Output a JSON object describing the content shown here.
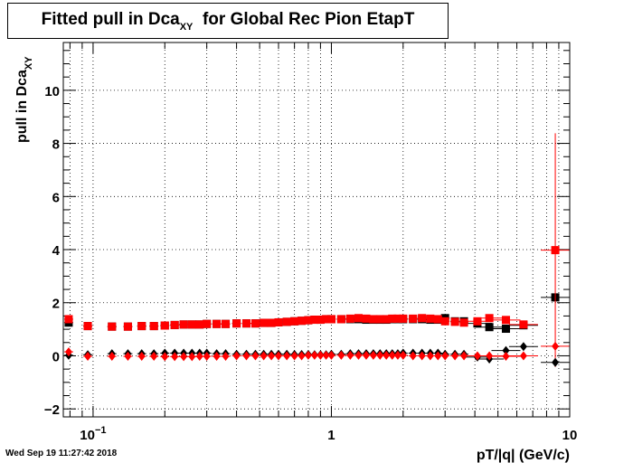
{
  "chart_data": {
    "type": "scatter",
    "title_main": "Fitted pull in Dca",
    "title_sub": "XY",
    "title_rest": "for Global Rec Pion EtapT",
    "xlabel": "pT/|q| (GeV/c)",
    "ylabel_main": "pull in Dca",
    "ylabel_sub": "XY",
    "x_scale": "log",
    "xlim": [
      0.075,
      10
    ],
    "ylim": [
      -2.3,
      11.8
    ],
    "grid": true,
    "x_tick_labels": [
      {
        "value": 0.1,
        "base": "10",
        "exp": "−1"
      },
      {
        "value": 1,
        "text": "1"
      },
      {
        "value": 10,
        "text": "10"
      }
    ],
    "y_ticks": [
      -2,
      0,
      2,
      4,
      6,
      8,
      10
    ],
    "y_tick_labels": [
      "−2",
      "0",
      "2",
      "4",
      "6",
      "8",
      "10"
    ],
    "colors": {
      "black": "#000000",
      "red": "#ff0000"
    },
    "series": [
      {
        "marker": "square",
        "color": "#000000",
        "x": [
          0.079,
          0.095,
          0.12,
          0.14,
          0.16,
          0.18,
          0.2,
          0.22,
          0.24,
          0.26,
          0.28,
          0.3,
          0.33,
          0.36,
          0.4,
          0.44,
          0.48,
          0.52,
          0.56,
          0.6,
          0.65,
          0.7,
          0.75,
          0.8,
          0.85,
          0.9,
          0.95,
          1.0,
          1.1,
          1.2,
          1.3,
          1.4,
          1.5,
          1.6,
          1.7,
          1.8,
          1.9,
          2.0,
          2.2,
          2.4,
          2.6,
          2.8,
          3.0,
          3.3,
          3.6,
          4.1,
          4.6,
          5.4,
          6.4,
          8.7
        ],
        "y": [
          1.25,
          1.12,
          1.1,
          1.1,
          1.12,
          1.12,
          1.14,
          1.16,
          1.18,
          1.18,
          1.18,
          1.2,
          1.2,
          1.2,
          1.22,
          1.22,
          1.22,
          1.24,
          1.24,
          1.26,
          1.28,
          1.3,
          1.32,
          1.34,
          1.36,
          1.36,
          1.38,
          1.38,
          1.38,
          1.38,
          1.38,
          1.36,
          1.36,
          1.36,
          1.36,
          1.38,
          1.38,
          1.38,
          1.38,
          1.38,
          1.36,
          1.36,
          1.42,
          1.3,
          1.3,
          1.22,
          1.08,
          1.02,
          1.15,
          2.2
        ]
      },
      {
        "marker": "square",
        "color": "#ff0000",
        "x": [
          0.079,
          0.095,
          0.12,
          0.14,
          0.16,
          0.18,
          0.2,
          0.22,
          0.24,
          0.26,
          0.28,
          0.3,
          0.33,
          0.36,
          0.4,
          0.44,
          0.48,
          0.52,
          0.56,
          0.6,
          0.65,
          0.7,
          0.75,
          0.8,
          0.85,
          0.9,
          0.95,
          1.0,
          1.1,
          1.2,
          1.3,
          1.4,
          1.5,
          1.6,
          1.7,
          1.8,
          1.9,
          2.0,
          2.2,
          2.4,
          2.6,
          2.8,
          3.0,
          3.3,
          3.6,
          4.1,
          4.6,
          5.4,
          6.4,
          8.7
        ],
        "y": [
          1.38,
          1.12,
          1.1,
          1.1,
          1.12,
          1.12,
          1.14,
          1.16,
          1.18,
          1.18,
          1.18,
          1.2,
          1.2,
          1.2,
          1.22,
          1.22,
          1.22,
          1.24,
          1.24,
          1.26,
          1.28,
          1.3,
          1.32,
          1.34,
          1.36,
          1.36,
          1.38,
          1.38,
          1.38,
          1.4,
          1.42,
          1.4,
          1.38,
          1.38,
          1.38,
          1.4,
          1.4,
          1.4,
          1.4,
          1.42,
          1.4,
          1.38,
          1.3,
          1.28,
          1.25,
          1.3,
          1.42,
          1.35,
          1.18,
          3.98
        ],
        "err": [
          0,
          0,
          0,
          0,
          0,
          0,
          0,
          0,
          0,
          0,
          0,
          0,
          0,
          0,
          0,
          0,
          0,
          0,
          0,
          0,
          0,
          0,
          0,
          0,
          0,
          0,
          0,
          0,
          0,
          0,
          0,
          0,
          0,
          0,
          0,
          0,
          0,
          0,
          0,
          0,
          0,
          0,
          0,
          0,
          0,
          0,
          0,
          0,
          0,
          4.4
        ]
      },
      {
        "marker": "diamond",
        "color": "#000000",
        "x": [
          0.079,
          0.095,
          0.12,
          0.14,
          0.16,
          0.18,
          0.2,
          0.22,
          0.24,
          0.26,
          0.28,
          0.3,
          0.33,
          0.36,
          0.4,
          0.44,
          0.48,
          0.52,
          0.56,
          0.6,
          0.65,
          0.7,
          0.75,
          0.8,
          0.85,
          0.9,
          0.95,
          1.0,
          1.1,
          1.2,
          1.3,
          1.4,
          1.5,
          1.6,
          1.7,
          1.8,
          1.9,
          2.0,
          2.2,
          2.4,
          2.6,
          2.8,
          3.0,
          3.3,
          3.6,
          4.1,
          4.6,
          5.4,
          6.4,
          8.7
        ],
        "y": [
          0.02,
          0.04,
          0.08,
          0.08,
          0.08,
          0.08,
          0.1,
          0.1,
          0.1,
          0.1,
          0.1,
          0.1,
          0.08,
          0.08,
          0.06,
          0.06,
          0.06,
          0.06,
          0.06,
          0.06,
          0.06,
          0.05,
          0.05,
          0.05,
          0.04,
          0.04,
          0.04,
          0.06,
          0.06,
          0.08,
          0.08,
          0.08,
          0.08,
          0.08,
          0.08,
          0.08,
          0.08,
          0.1,
          0.1,
          0.1,
          0.1,
          0.1,
          0.06,
          0.06,
          0.06,
          -0.05,
          -0.12,
          0.2,
          0.35,
          -0.25
        ]
      },
      {
        "marker": "diamond",
        "color": "#ff0000",
        "x": [
          0.079,
          0.095,
          0.12,
          0.14,
          0.16,
          0.18,
          0.2,
          0.22,
          0.24,
          0.26,
          0.28,
          0.3,
          0.33,
          0.36,
          0.4,
          0.44,
          0.48,
          0.52,
          0.56,
          0.6,
          0.65,
          0.7,
          0.75,
          0.8,
          0.85,
          0.9,
          0.95,
          1.0,
          1.1,
          1.2,
          1.3,
          1.4,
          1.5,
          1.6,
          1.7,
          1.8,
          1.9,
          2.0,
          2.2,
          2.4,
          2.6,
          2.8,
          3.0,
          3.3,
          3.6,
          4.1,
          4.6,
          5.4,
          6.4,
          8.7
        ],
        "y": [
          0.15,
          -0.02,
          -0.02,
          -0.02,
          -0.02,
          -0.02,
          -0.03,
          -0.03,
          -0.03,
          -0.03,
          -0.02,
          -0.02,
          -0.02,
          -0.02,
          0.0,
          0.0,
          0.0,
          0.0,
          0.0,
          0.0,
          0.0,
          0.0,
          0.0,
          0.02,
          0.02,
          0.02,
          0.02,
          0.02,
          0.02,
          0.02,
          0.02,
          0.02,
          0.02,
          0.02,
          0.02,
          0.02,
          0.02,
          0.02,
          0.0,
          0.0,
          0.0,
          0.0,
          0.0,
          0.0,
          0.0,
          0.0,
          0.0,
          -0.02,
          0.0,
          0.36
        ]
      }
    ]
  },
  "timestamp": "Wed Sep 19 11:27:42 2018"
}
